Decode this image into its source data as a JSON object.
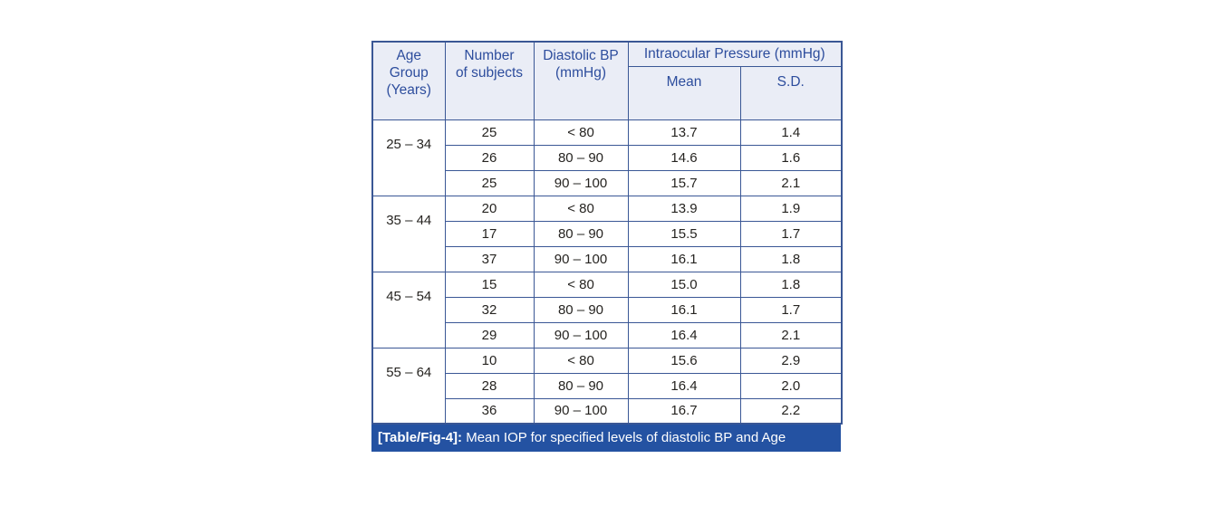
{
  "colors": {
    "border": "#3a5795",
    "header_bg": "#eaedf6",
    "header_text": "#2d4d9d",
    "caption_bg": "#2452a2",
    "caption_text": "#ffffff",
    "body_text": "#262421",
    "page_bg": "#ffffff"
  },
  "table": {
    "headers": {
      "age_group": "Age\nGroup\n(Years)",
      "number_of_subjects": "Number\nof subjects",
      "diastolic_bp": "Diastolic BP\n(mmHg)",
      "intraocular_pressure": "Intraocular Pressure (mmHg)",
      "mean": "Mean",
      "sd": "S.D."
    },
    "groups": [
      {
        "age": "25 – 34",
        "rows": [
          [
            "25",
            "< 80",
            "13.7",
            "1.4"
          ],
          [
            "26",
            "80 – 90",
            "14.6",
            "1.6"
          ],
          [
            "25",
            "90 – 100",
            "15.7",
            "2.1"
          ]
        ]
      },
      {
        "age": "35 – 44",
        "rows": [
          [
            "20",
            "< 80",
            "13.9",
            "1.9"
          ],
          [
            "17",
            "80 – 90",
            "15.5",
            "1.7"
          ],
          [
            "37",
            "90 – 100",
            "16.1",
            "1.8"
          ]
        ]
      },
      {
        "age": "45 – 54",
        "rows": [
          [
            "15",
            "< 80",
            "15.0",
            "1.8"
          ],
          [
            "32",
            "80 – 90",
            "16.1",
            "1.7"
          ],
          [
            "29",
            "90 – 100",
            "16.4",
            "2.1"
          ]
        ]
      },
      {
        "age": "55 – 64",
        "rows": [
          [
            "10",
            "< 80",
            "15.6",
            "2.9"
          ],
          [
            "28",
            "80 – 90",
            "16.4",
            "2.0"
          ],
          [
            "36",
            "90 – 100",
            "16.7",
            "2.2"
          ]
        ]
      }
    ],
    "caption_label": "[Table/Fig-4]:",
    "caption_text": " Mean IOP for specified levels of diastolic BP and Age"
  }
}
